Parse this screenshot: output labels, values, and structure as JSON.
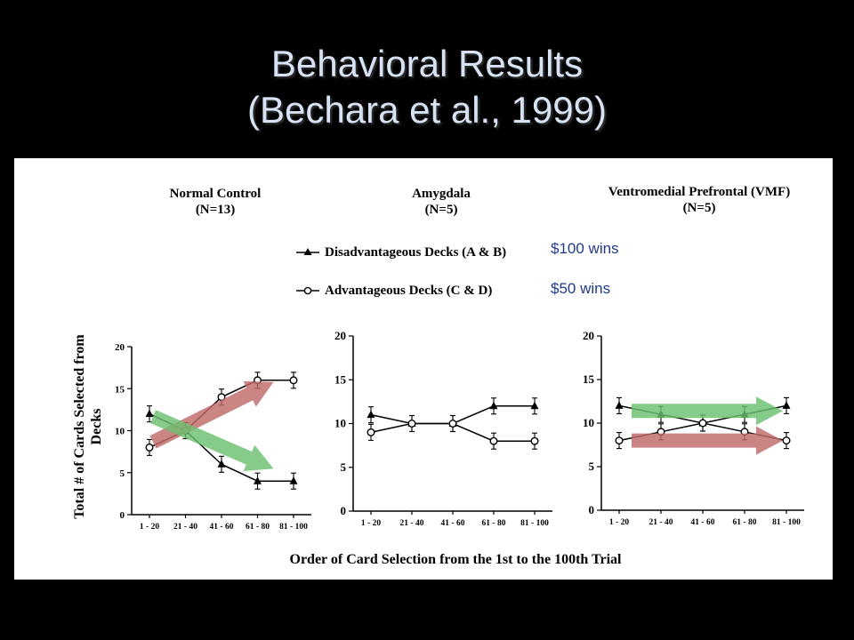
{
  "slide": {
    "title_line1": "Behavioral Results",
    "title_line2": "(Bechara et al., 1999)"
  },
  "figure": {
    "legend": {
      "disadvantageous": "Disadvantageous Decks (A & B)",
      "advantageous": "Advantageous Decks (C & D)"
    },
    "annotations": {
      "disadvantageous_note": "$100 wins",
      "advantageous_note": "$50 wins"
    },
    "ylabel_line1": "Total # of Cards Selected from",
    "ylabel_line2": "Decks",
    "xlabel": "Order of Card Selection from the 1st to the 100th Trial",
    "colors": {
      "green_arrow": "#6cc070",
      "red_arrow": "#c06a6a",
      "note_text": "#1f3a8a"
    }
  },
  "chart_data": [
    {
      "type": "line",
      "title_line1": "Normal Control",
      "title_line2": "(N=13)",
      "categories": [
        "1 - 20",
        "21 - 40",
        "41 - 60",
        "61 - 80",
        "81 - 100"
      ],
      "yticks": [
        "0",
        "5",
        "10",
        "15",
        "20"
      ],
      "ylim": [
        0,
        20
      ],
      "series": [
        {
          "name": "Disadvantageous Decks (A & B)",
          "marker": "triangle",
          "values": [
            12,
            10,
            6,
            4,
            4
          ]
        },
        {
          "name": "Advantageous Decks (C & D)",
          "marker": "circle",
          "values": [
            8,
            10,
            14,
            16,
            16
          ]
        }
      ]
    },
    {
      "type": "line",
      "title_line1": "Amygdala",
      "title_line2": "(N=5)",
      "categories": [
        "1 - 20",
        "21 - 40",
        "41 - 60",
        "61 - 80",
        "81 - 100"
      ],
      "yticks": [
        "0",
        "5",
        "10",
        "15",
        "20"
      ],
      "ylim": [
        0,
        20
      ],
      "series": [
        {
          "name": "Disadvantageous Decks (A & B)",
          "marker": "triangle",
          "values": [
            11,
            10,
            10,
            12,
            12
          ]
        },
        {
          "name": "Advantageous Decks (C & D)",
          "marker": "circle",
          "values": [
            9,
            10,
            10,
            8,
            8
          ]
        }
      ]
    },
    {
      "type": "line",
      "title_line1": "Ventromedial Prefrontal (VMF)",
      "title_line2": "(N=5)",
      "categories": [
        "1 - 20",
        "21 - 40",
        "41 - 60",
        "61 - 80",
        "81 - 100"
      ],
      "yticks": [
        "0",
        "5",
        "10",
        "15",
        "20"
      ],
      "ylim": [
        0,
        20
      ],
      "series": [
        {
          "name": "Disadvantageous Decks (A & B)",
          "marker": "triangle",
          "values": [
            12,
            11,
            10,
            11,
            12
          ]
        },
        {
          "name": "Advantageous Decks (C & D)",
          "marker": "circle",
          "values": [
            8,
            9,
            10,
            9,
            8
          ]
        }
      ]
    }
  ]
}
